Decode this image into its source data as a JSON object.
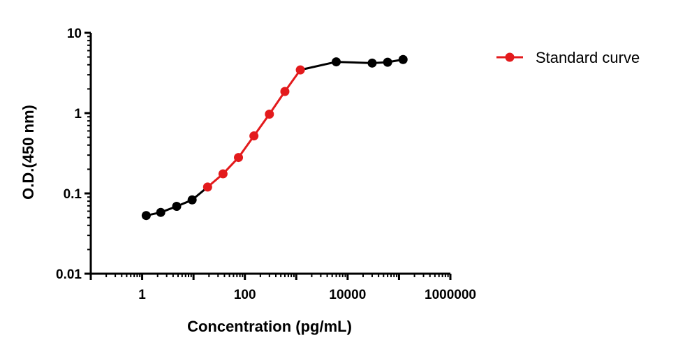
{
  "chart_data": {
    "type": "line",
    "title": "",
    "xlabel": "Concentration (pg/mL)",
    "ylabel": "O.D.(450 nm)",
    "x_scale": "log",
    "y_scale": "log",
    "xlim": [
      0.1,
      1000000
    ],
    "ylim": [
      0.01,
      10
    ],
    "x_tick_labels": [
      "1",
      "100",
      "10000",
      "1000000"
    ],
    "y_tick_labels": [
      "0.01",
      "0.1",
      "1",
      "10"
    ],
    "grid": false,
    "legend_position": "top-right",
    "legend": [
      "Standard curve"
    ],
    "colors": {
      "standard": "#e31a1c",
      "outside_range": "#000000"
    },
    "series": [
      {
        "name": "Standard curve",
        "x": [
          1.2,
          2.3,
          4.7,
          9.4,
          18.8,
          37.5,
          75,
          150,
          300,
          600,
          1200,
          6000,
          30000,
          60000,
          120000
        ],
        "y": [
          0.053,
          0.058,
          0.069,
          0.083,
          0.12,
          0.175,
          0.28,
          0.52,
          0.97,
          1.86,
          3.45,
          4.35,
          4.2,
          4.3,
          4.65
        ],
        "in_range": [
          false,
          false,
          false,
          false,
          true,
          true,
          true,
          true,
          true,
          true,
          true,
          false,
          false,
          false,
          false
        ]
      }
    ]
  }
}
